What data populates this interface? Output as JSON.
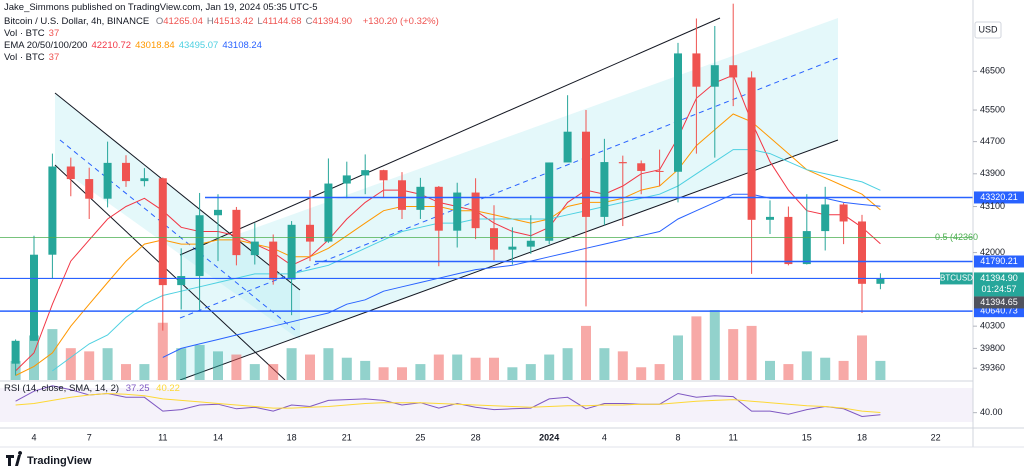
{
  "header": {
    "published": "Jake_Simmons published on TradingView.com, Jan 19, 2024 05:35 UTC-5",
    "brand": "TradingView"
  },
  "chart_data": {
    "type": "candlestick",
    "title": "Bitcoin / U.S. Dollar, 4h, BINANCE",
    "ohlc_legend": [
      {
        "label": "O",
        "value": "41265.04"
      },
      {
        "label": "H",
        "value": "41513.42"
      },
      {
        "label": "L",
        "value": "41144.68"
      },
      {
        "label": "C",
        "value": "41394.90"
      }
    ],
    "change": "+130.20 (+0.32%)",
    "volume_legend": [
      {
        "label": "Vol · BTC",
        "value": "37"
      },
      {
        "label": "Vol · BTC",
        "value": "37"
      }
    ],
    "currency": "USD",
    "log_scale": true,
    "up_color": "#26a69a",
    "down_color": "#ef5350",
    "categories": [
      null,
      "4",
      null,
      null,
      "7",
      null,
      null,
      null,
      "11",
      null,
      null,
      "14",
      null,
      null,
      null,
      "18",
      null,
      null,
      "21",
      null,
      null,
      null,
      "25",
      null,
      null,
      "28",
      null,
      null,
      null,
      "2024",
      null,
      null,
      "4",
      null,
      null,
      null,
      "8",
      null,
      null,
      "11",
      null,
      null,
      null,
      "15",
      null,
      null,
      "18",
      null,
      null,
      null,
      "22"
    ],
    "open": [
      39460,
      39970,
      41950,
      44080,
      43770,
      43290,
      44170,
      43720,
      43790,
      41240,
      41450,
      42890,
      43020,
      41940,
      42260,
      41370,
      42660,
      42260,
      43660,
      43860,
      43990,
      43740,
      43020,
      43580,
      42520,
      43440,
      42580,
      42070,
      42140,
      42280,
      44180,
      44950,
      42850,
      44190,
      44160,
      43970,
      43950,
      46970,
      46100,
      46660,
      46340,
      42780,
      42850,
      41730,
      42510,
      43150,
      42740,
      41270,
      null,
      null,
      null
    ],
    "high": [
      40000,
      42400,
      44400,
      44300,
      44050,
      44700,
      44360,
      44040,
      43810,
      42100,
      43430,
      43400,
      43090,
      42700,
      42430,
      42750,
      43500,
      44280,
      44200,
      44380,
      44000,
      43940,
      43800,
      43600,
      43680,
      43790,
      43130,
      42600,
      42890,
      44180,
      45880,
      45500,
      44770,
      44350,
      44230,
      44500,
      47250,
      47900,
      47700,
      48300,
      46500,
      43250,
      43100,
      43400,
      43580,
      43190,
      42900,
      41513.42,
      null,
      null,
      null
    ],
    "low": [
      39200,
      39970,
      41400,
      43350,
      42800,
      43080,
      43580,
      43590,
      40200,
      40680,
      40670,
      41800,
      41700,
      41720,
      41250,
      40550,
      41800,
      42230,
      43300,
      43400,
      43320,
      42800,
      42800,
      41680,
      42120,
      42320,
      41820,
      41720,
      41970,
      42200,
      44200,
      40750,
      42650,
      42630,
      43400,
      43600,
      43200,
      44400,
      44300,
      45600,
      41500,
      42440,
      41700,
      41720,
      42050,
      42200,
      40600,
      41144.68,
      null,
      null,
      null
    ],
    "close": [
      39970,
      41950,
      44080,
      43770,
      43290,
      44170,
      43720,
      43790,
      41240,
      41450,
      42890,
      43020,
      41940,
      42260,
      41370,
      42660,
      42260,
      43660,
      43860,
      43990,
      43740,
      43020,
      43580,
      42520,
      43440,
      42580,
      42070,
      42140,
      42280,
      44180,
      44950,
      42850,
      44190,
      44160,
      43970,
      43950,
      46970,
      46100,
      46660,
      46340,
      42780,
      42850,
      41730,
      42510,
      43150,
      42740,
      41270,
      41394.9,
      null,
      null,
      null
    ],
    "volume": [
      6000,
      14000,
      16000,
      10000,
      9000,
      10000,
      5000,
      5000,
      18000,
      10000,
      11000,
      9000,
      8000,
      5000,
      5000,
      10000,
      8000,
      10000,
      7000,
      6000,
      4000,
      4000,
      5000,
      8000,
      8000,
      7000,
      7000,
      4000,
      5000,
      8000,
      10000,
      17000,
      10000,
      9000,
      4000,
      5000,
      14000,
      20000,
      22000,
      16000,
      17000,
      6000,
      5000,
      9000,
      7000,
      6000,
      14000,
      6000,
      null,
      null,
      null
    ],
    "ema": {
      "label": "EMA 20/50/100/200",
      "series": [
        {
          "color": "#f23645",
          "last": "42210.72",
          "values": [
            39300,
            39700,
            40800,
            41800,
            42300,
            42800,
            43100,
            43300,
            43000,
            42600,
            42500,
            42500,
            42400,
            42200,
            42000,
            41700,
            41900,
            42300,
            42800,
            43200,
            43500,
            43500,
            43400,
            43200,
            43100,
            43000,
            42700,
            42500,
            42400,
            42600,
            43200,
            43500,
            43400,
            43600,
            43900,
            44000,
            44800,
            45800,
            46200,
            46400,
            45200,
            44200,
            43500,
            43000,
            42900,
            42900,
            42600,
            42210.72,
            null,
            null,
            null
          ]
        },
        {
          "color": "#ff9800",
          "last": "43018.84",
          "values": [
            39200,
            39400,
            39700,
            40300,
            40800,
            41300,
            41800,
            42200,
            42300,
            42200,
            42200,
            42300,
            42300,
            42200,
            42100,
            41900,
            41900,
            42100,
            42400,
            42700,
            43000,
            43100,
            43100,
            43100,
            43000,
            43000,
            42900,
            42800,
            42700,
            42800,
            43100,
            43200,
            43200,
            43300,
            43500,
            43600,
            44000,
            44600,
            45000,
            45400,
            45200,
            44800,
            44400,
            44000,
            43800,
            43600,
            43400,
            43018.84,
            null,
            null,
            null
          ]
        },
        {
          "color": "#4dd0e1",
          "last": "43495.07",
          "values": [
            null,
            null,
            39300,
            39600,
            39900,
            40100,
            40500,
            40800,
            41000,
            41100,
            41200,
            41300,
            41400,
            41500,
            41500,
            41500,
            41600,
            41700,
            41900,
            42100,
            42300,
            42500,
            42600,
            42700,
            42700,
            42800,
            42800,
            42800,
            42800,
            42800,
            42900,
            43000,
            43100,
            43200,
            43300,
            43400,
            43600,
            43900,
            44200,
            44500,
            44500,
            44400,
            44200,
            44000,
            43900,
            43800,
            43700,
            43495.07,
            null,
            null,
            null
          ]
        },
        {
          "color": "#2962ff",
          "last": "43108.24",
          "values": [
            null,
            null,
            null,
            null,
            null,
            null,
            null,
            null,
            39600,
            39800,
            39900,
            40000,
            40100,
            40200,
            40300,
            40400,
            40500,
            40600,
            40800,
            40900,
            41100,
            41200,
            41300,
            41400,
            41500,
            41600,
            41650,
            41700,
            41800,
            41900,
            42000,
            42100,
            42200,
            42300,
            42400,
            42500,
            42800,
            43000,
            43200,
            43400,
            43400,
            43300,
            43300,
            43300,
            43300,
            43200,
            43150,
            43108.24,
            null,
            null,
            null
          ]
        }
      ]
    },
    "ylim": [
      39100,
      48400
    ],
    "yticks": [
      46500,
      45500,
      44700,
      43900,
      43100,
      42000,
      40300,
      39800,
      39360
    ],
    "price_lines": [
      {
        "value": 43320.21,
        "color": "#2962ff"
      },
      {
        "value": 41790.21,
        "color": "#2962ff"
      },
      {
        "value": 40640.73,
        "color": "#2962ff"
      }
    ],
    "fib": {
      "value": 42360,
      "label": "0.5 (42360",
      "color": "#4caf50"
    },
    "last_price": {
      "symbol": "BTCUSD",
      "price": {
        "value": 41394.9,
        "label": "41394.90"
      },
      "countdown": "01:24:57",
      "color": "#26a69a"
    },
    "bid": {
      "value": 41394.65,
      "color": "#50535e"
    },
    "rsi": {
      "label": "RSI (14, close, SMA, 14, 2)",
      "last": "37.25",
      "ma_last": "40.22",
      "color": "#7e57c2",
      "ma_color": "#fdd835",
      "ylim": [
        20,
        80
      ],
      "yticks": [
        {
          "value": 40,
          "label": "40.00"
        }
      ],
      "values": [
        55,
        68,
        75,
        70,
        63,
        65,
        60,
        60,
        42,
        44,
        50,
        51,
        45,
        47,
        42,
        50,
        48,
        56,
        57,
        58,
        56,
        50,
        53,
        46,
        52,
        47,
        44,
        45,
        46,
        58,
        60,
        45,
        52,
        52,
        51,
        51,
        65,
        60,
        62,
        61,
        42,
        42,
        38,
        44,
        48,
        45,
        35,
        37.25,
        null,
        null,
        null
      ],
      "ma": [
        50,
        52,
        56,
        60,
        63,
        65,
        64,
        62,
        58,
        56,
        54,
        52,
        50,
        48,
        46,
        46,
        47,
        48,
        50,
        52,
        53,
        53,
        53,
        52,
        51,
        50,
        49,
        48,
        47,
        48,
        49,
        49,
        50,
        50,
        51,
        51,
        53,
        55,
        56,
        57,
        55,
        53,
        51,
        49,
        48,
        46,
        42,
        40.22,
        null,
        null,
        null
      ]
    }
  }
}
